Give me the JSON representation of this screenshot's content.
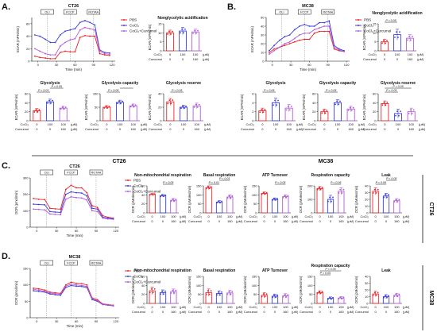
{
  "figure": {
    "conditions": [
      "PBS",
      "CoCl₂",
      "CoCl₂+Curcumol"
    ],
    "colors": [
      "#e8242a",
      "#3b3fd6",
      "#b15bd8"
    ],
    "injections": [
      "OLI",
      "FCCP",
      "ROTAA"
    ],
    "cocl2_row_label": "CoCl₂",
    "curcumol_row_label": "Curcumol",
    "cocl2_values": [
      "0",
      "100",
      "100"
    ],
    "curcumol_values": [
      "0",
      "0",
      "160"
    ],
    "unit": "(μM)",
    "side_labels": [
      "CT26",
      "MC38",
      "CT26",
      "MC38"
    ]
  },
  "panels": [
    {
      "letter": "A.",
      "cell": "CT26"
    },
    {
      "letter": "B.",
      "cell": "MC38"
    },
    {
      "letter": "C.",
      "cell": "CT26"
    },
    {
      "letter": "D.",
      "cell": "MC38"
    }
  ],
  "chart_data": [
    {
      "id": "A-trace",
      "type": "line",
      "title": "CT26",
      "xlabel": "Time (min)",
      "ylabel": "ECAR (mPH/min)",
      "xticks": [
        "0",
        "30",
        "60",
        "90",
        "120"
      ],
      "yticks": [
        "0",
        "20",
        "40",
        "60"
      ],
      "xlim": [
        -10,
        125
      ],
      "ylim": [
        0,
        70
      ],
      "x": [
        -5,
        3,
        12,
        20,
        28,
        36,
        44,
        52,
        60,
        68,
        76,
        84,
        92,
        100,
        108,
        116
      ],
      "series": [
        {
          "name": "PBS",
          "values": [
            8,
            6,
            5,
            4,
            4,
            14,
            16,
            15,
            15,
            38,
            41,
            40,
            40,
            12,
            10,
            9
          ]
        },
        {
          "name": "CoCl₂",
          "values": [
            42,
            40,
            35,
            30,
            30,
            42,
            48,
            50,
            52,
            62,
            65,
            62,
            58,
            18,
            14,
            13
          ]
        },
        {
          "name": "CoCl₂+Curcumol",
          "values": [
            20,
            16,
            12,
            10,
            10,
            24,
            30,
            34,
            36,
            50,
            54,
            52,
            50,
            16,
            12,
            11
          ]
        }
      ],
      "markers": [
        "OLI",
        "FCCP",
        "ROTAA"
      ]
    },
    {
      "id": "A-nonglyco",
      "type": "bar",
      "title": "Nonglycolytic acidification",
      "ylabel": "ECAR (mPH/min)",
      "yticks": [
        "0",
        "5",
        "10",
        "15"
      ],
      "ylim": [
        0,
        15
      ],
      "categories": [
        "PBS",
        "CoCl₂",
        "CoCl₂+Curcumol"
      ],
      "values": [
        10,
        11,
        10.5
      ],
      "errors": [
        1.5,
        2,
        1.5
      ],
      "sig": []
    },
    {
      "id": "A-glyco",
      "type": "bar",
      "title": "Glycolysis",
      "ylabel": "ECAR (mPH/min)",
      "yticks": [
        "0",
        "20",
        "40",
        "60"
      ],
      "ylim": [
        0,
        60
      ],
      "categories": [
        "PBS",
        "CoCl₂",
        "CoCl₂+Curcumol"
      ],
      "values": [
        22,
        42,
        28
      ],
      "errors": [
        5,
        6,
        4
      ],
      "sig": [
        {
          "from": 0,
          "to": 1,
          "label": "P < 0.01"
        },
        {
          "from": 1,
          "to": 2,
          "label": "P < 0.05"
        }
      ]
    },
    {
      "id": "A-glycocap",
      "type": "bar",
      "title": "Glycolysis capacity",
      "ylabel": "ECAR (mPH/min)",
      "yticks": [
        "0",
        "50",
        "100"
      ],
      "ylim": [
        0,
        100
      ],
      "categories": [
        "PBS",
        "CoCl₂",
        "CoCl₂+Curcumol"
      ],
      "values": [
        50,
        68,
        55
      ],
      "errors": [
        6,
        8,
        7
      ],
      "sig": [
        {
          "from": 0,
          "to": 1,
          "label": "P < 0.05"
        },
        {
          "from": 1,
          "to": 2,
          "label": ""
        }
      ]
    },
    {
      "id": "A-glycores",
      "type": "bar",
      "title": "Glycolysis reserve",
      "ylabel": "ECAR (mPH/min)",
      "yticks": [
        "0",
        "20",
        "40"
      ],
      "ylim": [
        0,
        40
      ],
      "categories": [
        "PBS",
        "CoCl₂",
        "CoCl₂+Curcumol"
      ],
      "values": [
        28,
        20,
        22
      ],
      "errors": [
        5,
        3,
        4
      ],
      "sig": [
        {
          "from": 0,
          "to": 1,
          "label": "P < 0.05"
        }
      ]
    },
    {
      "id": "B-trace",
      "type": "line",
      "title": "MC38",
      "xlabel": "Time (min)",
      "ylabel": "ECAR (mPH/min)",
      "xticks": [
        "0",
        "30",
        "60",
        "90",
        "120"
      ],
      "yticks": [
        "0",
        "10",
        "20",
        "30",
        "40",
        "50"
      ],
      "xlim": [
        -10,
        125
      ],
      "ylim": [
        0,
        50
      ],
      "x": [
        -5,
        3,
        12,
        20,
        28,
        36,
        44,
        52,
        60,
        68,
        76,
        84,
        92,
        100,
        108,
        116
      ],
      "series": [
        {
          "name": "PBS",
          "values": [
            10,
            14,
            16,
            18,
            20,
            22,
            24,
            25,
            25,
            32,
            34,
            34,
            34,
            14,
            12,
            11
          ]
        },
        {
          "name": "CoCl₂",
          "values": [
            12,
            18,
            24,
            28,
            30,
            36,
            40,
            42,
            40,
            40,
            44,
            44,
            46,
            18,
            14,
            12
          ]
        },
        {
          "name": "CoCl₂+Curcumol",
          "values": [
            8,
            12,
            16,
            20,
            22,
            26,
            30,
            32,
            32,
            36,
            38,
            40,
            40,
            16,
            13,
            11
          ]
        }
      ],
      "markers": [
        "OLI",
        "FCCP",
        "ROTAA"
      ]
    },
    {
      "id": "B-nonglyco",
      "type": "bar",
      "title": "Nonglycolytic acidification",
      "ylabel": "ECAR (mPH/min)",
      "yticks": [
        "0",
        "5",
        "10",
        "15"
      ],
      "ylim": [
        0,
        15
      ],
      "categories": [
        "PBS",
        "CoCl₂",
        "CoCl₂+Curcumol"
      ],
      "values": [
        5,
        9,
        7
      ],
      "errors": [
        1.5,
        3,
        2
      ],
      "sig": [
        {
          "from": 0,
          "to": 1,
          "label": "P < 0.05"
        }
      ]
    },
    {
      "id": "B-glyco",
      "type": "bar",
      "title": "Glycolysis",
      "ylabel": "ECAR (mPH/min)",
      "yticks": [
        "0",
        "2",
        "4",
        "6"
      ],
      "ylim": [
        0,
        6
      ],
      "categories": [
        "PBS",
        "CoCl₂",
        "CoCl₂+Curcumol"
      ],
      "values": [
        2.2,
        4,
        2.8
      ],
      "errors": [
        0.6,
        1,
        0.8
      ],
      "sig": [
        {
          "from": 0,
          "to": 1,
          "label": "P < 0.05"
        }
      ]
    },
    {
      "id": "B-glycocap",
      "type": "bar",
      "title": "Glycolysis capacity",
      "ylabel": "ECAR (mPH/min)",
      "yticks": [
        "0",
        "20",
        "40",
        "60"
      ],
      "ylim": [
        0,
        60
      ],
      "categories": [
        "PBS",
        "CoCl₂",
        "CoCl₂+Curcumol"
      ],
      "values": [
        20,
        40,
        26
      ],
      "errors": [
        6,
        7,
        6
      ],
      "sig": [
        {
          "from": 0,
          "to": 1,
          "label": "P < 0.05"
        }
      ]
    },
    {
      "id": "B-glycores",
      "type": "bar",
      "title": "Glycolysis reserve",
      "ylabel": "ECAR (mPH/min)",
      "yticks": [
        "0",
        "20",
        "40",
        "60"
      ],
      "ylim": [
        0,
        60
      ],
      "categories": [
        "PBS",
        "CoCl₂",
        "CoCl₂+Curcumol"
      ],
      "values": [
        38,
        16,
        20
      ],
      "errors": [
        6,
        10,
        8
      ],
      "sig": [
        {
          "from": 0,
          "to": 1,
          "label": "P < 0.05"
        },
        {
          "from": 0,
          "to": 2,
          "label": "P < 0.05"
        }
      ]
    },
    {
      "id": "C-trace",
      "type": "line",
      "title": "CT26",
      "xlabel": "Time (min)",
      "ylabel": "OCR (pmol/min)",
      "xticks": [
        "0",
        "30",
        "60",
        "90",
        "120"
      ],
      "yticks": [
        "0",
        "100",
        "200",
        "300"
      ],
      "xlim": [
        -10,
        125
      ],
      "ylim": [
        0,
        300
      ],
      "x": [
        -5,
        3,
        12,
        20,
        28,
        36,
        44,
        52,
        60,
        68,
        76,
        84,
        92,
        100,
        108,
        116
      ],
      "series": [
        {
          "name": "PBS",
          "values": [
            175,
            170,
            168,
            115,
            112,
            110,
            230,
            255,
            240,
            240,
            210,
            130,
            120,
            70,
            60,
            55
          ]
        },
        {
          "name": "CoCl₂",
          "values": [
            140,
            138,
            136,
            95,
            92,
            90,
            200,
            215,
            210,
            208,
            190,
            115,
            110,
            60,
            55,
            52
          ]
        },
        {
          "name": "CoCl₂+Curcumol",
          "values": [
            110,
            108,
            105,
            80,
            78,
            76,
            170,
            185,
            180,
            178,
            165,
            100,
            95,
            55,
            50,
            48
          ]
        }
      ],
      "markers": [
        "OLI",
        "FCCP",
        "ROTAA"
      ]
    },
    {
      "id": "C-nonmito",
      "type": "bar",
      "title": "Non-mitochondrial respiration",
      "ylabel": "OCR (pMoles/min)",
      "yticks": [
        "0",
        "20",
        "40",
        "60"
      ],
      "ylim": [
        0,
        60
      ],
      "categories": [
        "PBS",
        "CoCl₂",
        "CoCl₂+Curcumol"
      ],
      "values": [
        41,
        38,
        28
      ],
      "errors": [
        2,
        3,
        4
      ],
      "sig": [
        {
          "from": 1,
          "to": 2,
          "label": "P < 0.05"
        }
      ]
    },
    {
      "id": "C-basal",
      "type": "bar",
      "title": "Basal respiration",
      "ylabel": "OCR (pMoles/min)",
      "yticks": [
        "0",
        "50",
        "100",
        "150"
      ],
      "ylim": [
        0,
        150
      ],
      "categories": [
        "PBS",
        "CoCl₂",
        "CoCl₂+Curcumol"
      ],
      "values": [
        140,
        60,
        88
      ],
      "errors": [
        10,
        8,
        12
      ],
      "sig": [
        {
          "from": 0,
          "to": 1,
          "label": "P < 0.01"
        },
        {
          "from": 1,
          "to": 2,
          "label": "P < 0.01"
        }
      ]
    },
    {
      "id": "C-atp",
      "type": "bar",
      "title": "ATP Turnover",
      "ylabel": "OCR (pMoles/min)",
      "yticks": [
        "0",
        "50",
        "100",
        "150"
      ],
      "ylim": [
        0,
        150
      ],
      "categories": [
        "PBS",
        "CoCl₂",
        "CoCl₂+Curcumol"
      ],
      "values": [
        108,
        75,
        90
      ],
      "errors": [
        8,
        8,
        10
      ],
      "sig": [
        {
          "from": 1,
          "to": 2,
          "label": "P < 0.05"
        }
      ]
    },
    {
      "id": "C-capacity",
      "type": "bar",
      "title": "Respiration capacity",
      "ylabel": "OCR (pMoles/min)",
      "yticks": [
        "0",
        "100",
        "200"
      ],
      "ylim": [
        0,
        200
      ],
      "categories": [
        "PBS",
        "CoCl₂",
        "CoCl₂+Curcumol"
      ],
      "values": [
        180,
        100,
        160
      ],
      "errors": [
        15,
        30,
        25
      ],
      "sig": [
        {
          "from": 1,
          "to": 2,
          "label": "P < 0.05"
        }
      ]
    },
    {
      "id": "C-leak",
      "type": "bar",
      "title": "Leak",
      "ylabel": "OCR (pMoles/min)",
      "yticks": [
        "0",
        "10",
        "20",
        "30",
        "40"
      ],
      "ylim": [
        0,
        40
      ],
      "categories": [
        "PBS",
        "CoCl₂",
        "CoCl₂+Curcumol"
      ],
      "values": [
        32,
        25,
        18
      ],
      "errors": [
        5,
        4,
        3
      ],
      "sig": [
        {
          "from": 0,
          "to": 1,
          "label": "P < 0.05"
        },
        {
          "from": 1,
          "to": 2,
          "label": "P < 0.05"
        }
      ]
    },
    {
      "id": "D-trace",
      "type": "line",
      "title": "MC38",
      "xlabel": "Time (min)",
      "ylabel": "OCR (pmol/min)",
      "xticks": [
        "0",
        "30",
        "60",
        "90",
        "120"
      ],
      "yticks": [
        "0",
        "50",
        "100",
        "150"
      ],
      "xlim": [
        -10,
        125
      ],
      "ylim": [
        0,
        150
      ],
      "x": [
        -5,
        3,
        12,
        20,
        28,
        36,
        44,
        52,
        60,
        68,
        76,
        84,
        92,
        100,
        108,
        116
      ],
      "series": [
        {
          "name": "PBS",
          "values": [
            90,
            88,
            84,
            78,
            76,
            74,
            100,
            108,
            105,
            104,
            100,
            60,
            55,
            42,
            40,
            38
          ]
        },
        {
          "name": "CoCl₂",
          "values": [
            82,
            80,
            78,
            72,
            70,
            68,
            92,
            98,
            96,
            95,
            92,
            55,
            50,
            40,
            38,
            36
          ]
        },
        {
          "name": "CoCl₂+Curcumol",
          "values": [
            86,
            84,
            80,
            75,
            73,
            71,
            96,
            102,
            100,
            98,
            95,
            58,
            52,
            41,
            39,
            37
          ]
        }
      ],
      "markers": [
        "OLI",
        "FCCP",
        "ROTAA"
      ]
    },
    {
      "id": "D-nonmito",
      "type": "bar",
      "title": "Non-mitochondrial respiration",
      "ylabel": "OCR (pMoles/min)",
      "yticks": [
        "0",
        "20",
        "40",
        "60"
      ],
      "ylim": [
        0,
        60
      ],
      "categories": [
        "PBS",
        "CoCl₂",
        "CoCl₂+Curcumol"
      ],
      "values": [
        28,
        24,
        26
      ],
      "errors": [
        8,
        6,
        6
      ],
      "sig": []
    },
    {
      "id": "D-basal",
      "type": "bar",
      "title": "Basal respiration",
      "ylabel": "OCR (pMoles/min)",
      "yticks": [
        "0",
        "50",
        "100",
        "150"
      ],
      "ylim": [
        0,
        150
      ],
      "categories": [
        "PBS",
        "CoCl₂",
        "CoCl₂+Curcumol"
      ],
      "values": [
        60,
        55,
        58
      ],
      "errors": [
        20,
        15,
        15
      ],
      "sig": []
    },
    {
      "id": "D-atp",
      "type": "bar",
      "title": "ATP Turnover",
      "ylabel": "OCR (pMoles/min)",
      "yticks": [
        "0",
        "50",
        "100",
        "150"
      ],
      "ylim": [
        0,
        150
      ],
      "categories": [
        "PBS",
        "CoCl₂",
        "CoCl₂+Curcumol"
      ],
      "values": [
        45,
        40,
        42
      ],
      "errors": [
        15,
        12,
        12
      ],
      "sig": []
    },
    {
      "id": "D-capacity",
      "type": "bar",
      "title": "Respiration capacity",
      "ylabel": "OCR (pMoles/min)",
      "yticks": [
        "0",
        "50",
        "100",
        "150"
      ],
      "ylim": [
        0,
        150
      ],
      "categories": [
        "PBS",
        "CoCl₂",
        "CoCl₂+Curcumol"
      ],
      "values": [
        60,
        28,
        30
      ],
      "errors": [
        10,
        8,
        8
      ],
      "sig": [
        {
          "from": 0,
          "to": 1,
          "label": "P < 0.05"
        },
        {
          "from": 0,
          "to": 2,
          "label": "P < 0.05"
        }
      ]
    },
    {
      "id": "D-leak",
      "type": "bar",
      "title": "Leak",
      "ylabel": "OCR (pMoles/min)",
      "yticks": [
        "0",
        "10",
        "20",
        "30",
        "40"
      ],
      "ylim": [
        0,
        40
      ],
      "categories": [
        "PBS",
        "CoCl₂",
        "CoCl₂+Curcumol"
      ],
      "values": [
        14,
        10,
        12
      ],
      "errors": [
        4,
        3,
        3
      ],
      "sig": []
    }
  ]
}
